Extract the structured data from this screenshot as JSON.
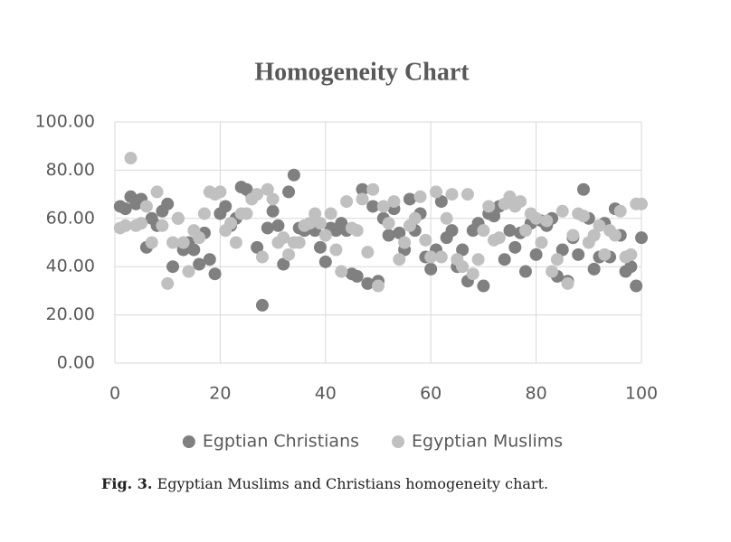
{
  "chart_data": {
    "type": "scatter",
    "title": "Homogeneity Chart",
    "x": [
      1,
      2,
      3,
      4,
      5,
      6,
      7,
      8,
      9,
      10,
      11,
      12,
      13,
      14,
      15,
      16,
      17,
      18,
      19,
      20,
      21,
      22,
      23,
      24,
      25,
      26,
      27,
      28,
      29,
      30,
      31,
      32,
      33,
      34,
      35,
      36,
      37,
      38,
      39,
      40,
      41,
      42,
      43,
      44,
      45,
      46,
      47,
      48,
      49,
      50,
      51,
      52,
      53,
      54,
      55,
      56,
      57,
      58,
      59,
      60,
      61,
      62,
      63,
      64,
      65,
      66,
      67,
      68,
      69,
      70,
      71,
      72,
      73,
      74,
      75,
      76,
      77,
      78,
      79,
      80,
      81,
      82,
      83,
      84,
      85,
      86,
      87,
      88,
      89,
      90,
      91,
      92,
      93,
      94,
      95,
      96,
      97,
      98,
      99,
      100
    ],
    "series": [
      {
        "name": "Egptian Christians",
        "color": "#808080",
        "values": [
          65,
          64,
          69,
          66,
          68,
          48,
          60,
          57,
          63,
          66,
          40,
          60,
          47,
          50,
          47,
          41,
          54,
          43,
          37,
          62,
          65,
          57,
          60,
          73,
          72,
          69,
          48,
          24,
          56,
          63,
          57,
          41,
          71,
          78,
          56,
          55,
          57,
          55,
          48,
          42,
          56,
          55,
          58,
          55,
          37,
          36,
          72,
          33,
          65,
          34,
          60,
          53,
          64,
          54,
          47,
          68,
          55,
          62,
          44,
          39,
          47,
          67,
          52,
          55,
          40,
          47,
          34,
          55,
          58,
          32,
          62,
          61,
          65,
          43,
          55,
          48,
          54,
          38,
          58,
          45,
          59,
          57,
          60,
          36,
          47,
          34,
          52,
          45,
          72,
          60,
          39,
          44,
          58,
          44,
          64,
          53,
          38,
          40,
          32,
          52
        ]
      },
      {
        "name": "Egyptian Muslims",
        "color": "#c0c0c0",
        "values": [
          56,
          57,
          85,
          57,
          58,
          65,
          50,
          71,
          57,
          33,
          50,
          60,
          50,
          38,
          55,
          52,
          62,
          71,
          70,
          71,
          55,
          58,
          50,
          62,
          62,
          68,
          70,
          44,
          72,
          68,
          50,
          52,
          45,
          50,
          50,
          57,
          58,
          62,
          58,
          53,
          62,
          47,
          38,
          67,
          56,
          55,
          68,
          46,
          72,
          32,
          65,
          58,
          67,
          43,
          50,
          57,
          60,
          69,
          51,
          44,
          71,
          44,
          60,
          70,
          43,
          40,
          70,
          37,
          43,
          55,
          65,
          51,
          52,
          66,
          69,
          65,
          67,
          55,
          62,
          60,
          50,
          59,
          38,
          43,
          63,
          33,
          53,
          62,
          61,
          50,
          53,
          57,
          45,
          55,
          53,
          63,
          44,
          45,
          66,
          66
        ]
      }
    ],
    "xlim": [
      0,
      100
    ],
    "xticks": [
      0,
      20,
      40,
      60,
      80,
      100
    ],
    "ylim": [
      0,
      100
    ],
    "yticks": [
      {
        "value": 0,
        "label": "0.00"
      },
      {
        "value": 20,
        "label": "20.00"
      },
      {
        "value": 40,
        "label": "40.00"
      },
      {
        "value": 60,
        "label": "60.00"
      },
      {
        "value": 80,
        "label": "80.00"
      },
      {
        "value": 100,
        "label": "100.00"
      }
    ],
    "grid": true,
    "legend": "bottom"
  },
  "caption": {
    "label": "Fig. 3.",
    "text": "Egyptian Muslims and Christians homogeneity chart."
  }
}
